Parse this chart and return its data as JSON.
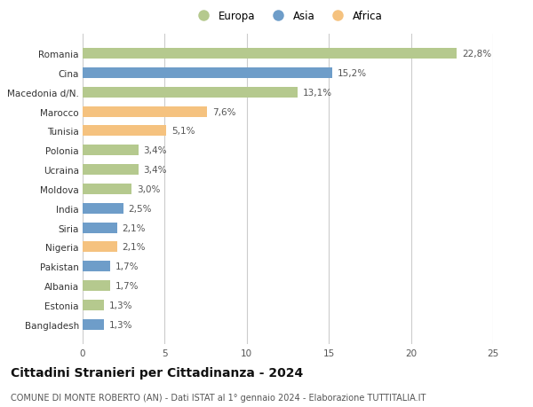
{
  "countries": [
    "Romania",
    "Cina",
    "Macedonia d/N.",
    "Marocco",
    "Tunisia",
    "Polonia",
    "Ucraina",
    "Moldova",
    "India",
    "Siria",
    "Nigeria",
    "Pakistan",
    "Albania",
    "Estonia",
    "Bangladesh"
  ],
  "values": [
    22.8,
    15.2,
    13.1,
    7.6,
    5.1,
    3.4,
    3.4,
    3.0,
    2.5,
    2.1,
    2.1,
    1.7,
    1.7,
    1.3,
    1.3
  ],
  "labels": [
    "22,8%",
    "15,2%",
    "13,1%",
    "7,6%",
    "5,1%",
    "3,4%",
    "3,4%",
    "3,0%",
    "2,5%",
    "2,1%",
    "2,1%",
    "1,7%",
    "1,7%",
    "1,3%",
    "1,3%"
  ],
  "continents": [
    "Europa",
    "Asia",
    "Europa",
    "Africa",
    "Africa",
    "Europa",
    "Europa",
    "Europa",
    "Asia",
    "Asia",
    "Africa",
    "Asia",
    "Europa",
    "Europa",
    "Asia"
  ],
  "colors": {
    "Europa": "#b5c98e",
    "Asia": "#6e9dc9",
    "Africa": "#f5c27f"
  },
  "xlim": [
    0,
    25
  ],
  "xticks": [
    0,
    5,
    10,
    15,
    20,
    25
  ],
  "title": "Cittadini Stranieri per Cittadinanza - 2024",
  "subtitle": "COMUNE DI MONTE ROBERTO (AN) - Dati ISTAT al 1° gennaio 2024 - Elaborazione TUTTITALIA.IT",
  "background_color": "#ffffff",
  "grid_color": "#cccccc",
  "bar_height": 0.55,
  "label_fontsize": 7.5,
  "tick_fontsize": 7.5,
  "title_fontsize": 10,
  "subtitle_fontsize": 7
}
